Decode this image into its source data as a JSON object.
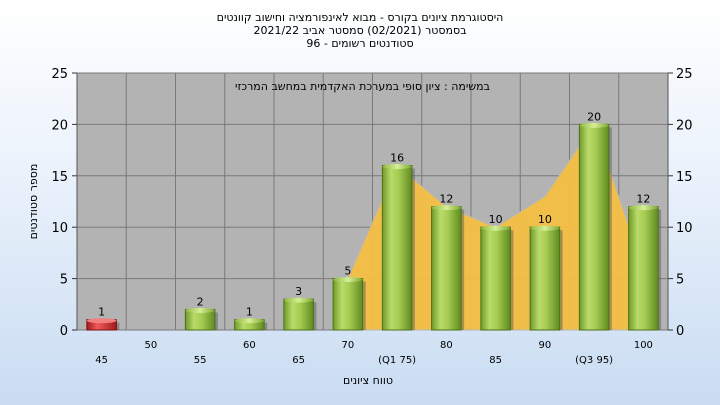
{
  "titles": [
    "היסטוגרמת ציונים בקורס - מבוא לאינפורמציה וחישוב קוונטים",
    "בסמסטר  (02/2021)  סמסטר אביב 2021/22",
    "סטודנטים רשומים - 96"
  ],
  "chart_data": {
    "type": "bar",
    "categories": [
      "45",
      "50",
      "55",
      "60",
      "65",
      "70",
      "(Q1 75)",
      "80",
      "85",
      "90",
      "(Q3 95)",
      "100"
    ],
    "values": [
      1,
      0,
      2,
      1,
      3,
      5,
      16,
      12,
      10,
      10,
      20,
      12
    ],
    "bar_colors": [
      "red",
      "none",
      "green",
      "green",
      "green",
      "green",
      "green",
      "green",
      "green",
      "green",
      "green",
      "green"
    ],
    "xlabel": "טווח ציונים",
    "ylabel": "מספר סטודנטים",
    "ylim": [
      0,
      25
    ],
    "yticks": [
      0,
      5,
      10,
      15,
      20,
      25
    ],
    "annotation": "במשימה : ציון סופי במערכת האקדמית במחשב המרכזי",
    "grid": true,
    "area_overlay": {
      "from_category": "70",
      "to_category": "100",
      "values": [
        5,
        16,
        12,
        10,
        13,
        20,
        6
      ],
      "color": "#f5c044"
    },
    "colors": {
      "plot_background": "#b3b3b3",
      "green_bar": "#8fb83e",
      "red_bar": "#c62828"
    }
  }
}
